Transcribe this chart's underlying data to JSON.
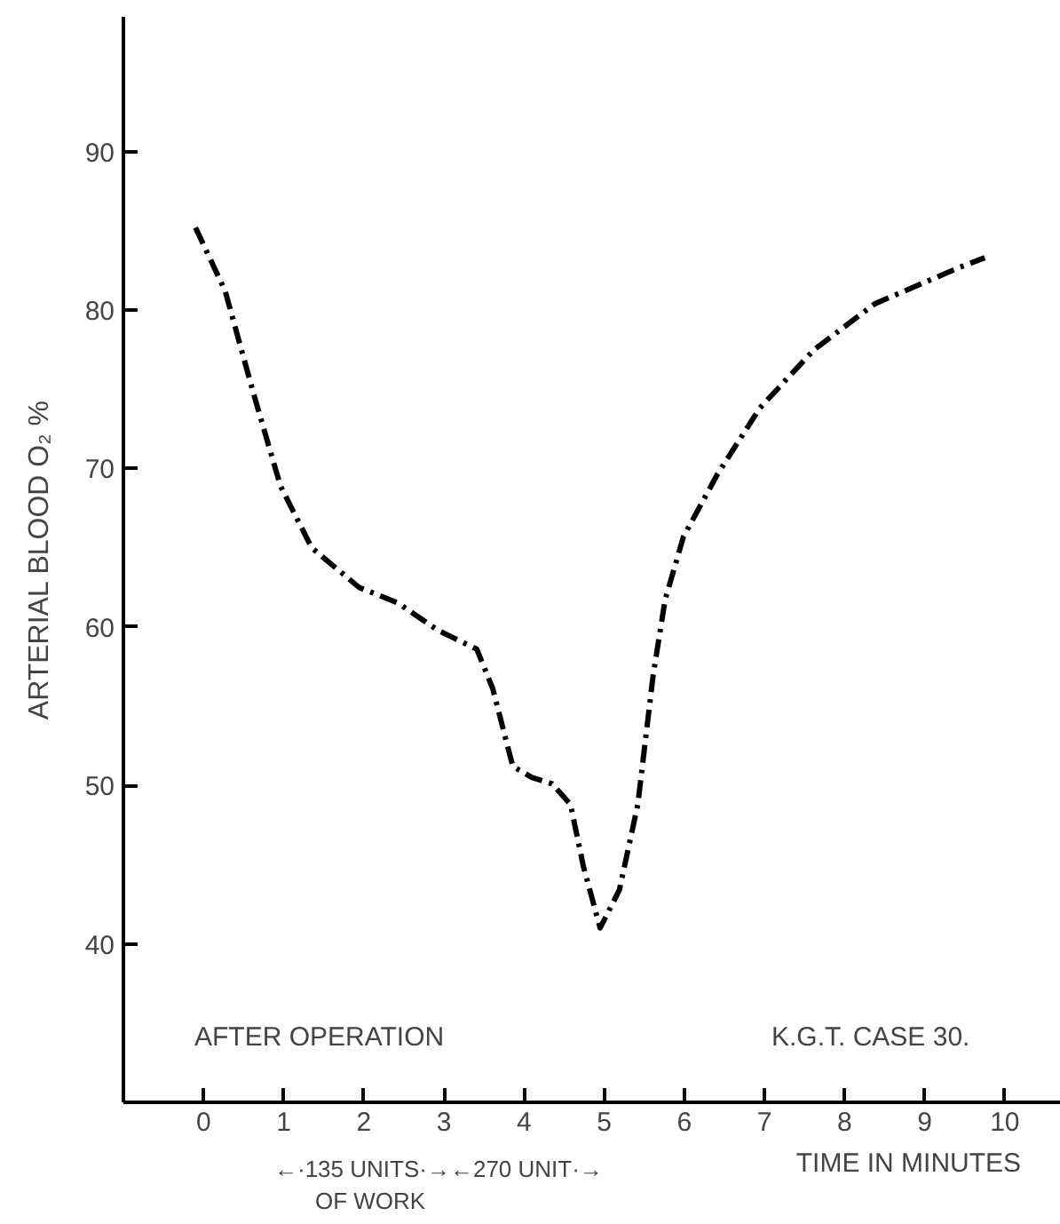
{
  "chart_data": {
    "type": "line",
    "xlabel": "TIME IN MINUTES",
    "ylabel": "ARTERIAL BLOOD O₂ %",
    "annotations": [
      "AFTER OPERATION",
      "K.G.T.    CASE 30.",
      "←·135 UNITS·→←270 UNIT·→",
      "OF WORK"
    ],
    "x": [
      -0.1,
      0.27,
      0.62,
      0.96,
      1.35,
      1.94,
      2.43,
      2.92,
      3.41,
      3.61,
      3.86,
      4.1,
      4.35,
      4.58,
      4.74,
      4.95,
      5.19,
      5.42,
      5.61,
      5.76,
      5.99,
      6.41,
      6.94,
      7.62,
      8.38,
      9.44,
      9.75
    ],
    "series": [
      {
        "color": "#000000",
        "values": [
          85.2,
          81.2,
          74.8,
          68.9,
          65.0,
          62.5,
          61.5,
          59.8,
          58.6,
          56.1,
          51.2,
          50.5,
          50.1,
          48.8,
          44.9,
          41.0,
          43.4,
          48.8,
          56.9,
          61.7,
          65.7,
          69.6,
          73.8,
          77.5,
          80.4,
          82.7,
          83.3
        ]
      }
    ],
    "xlim": [
      -1,
      10.7
    ],
    "ylim": [
      30,
      98.5
    ],
    "xticks": [
      0,
      1,
      2,
      3,
      4,
      5,
      6,
      7,
      8,
      9,
      10
    ],
    "yticks": [
      40,
      50,
      60,
      70,
      80,
      90
    ],
    "grid": false,
    "marker": "none",
    "line_style": "dashed"
  }
}
